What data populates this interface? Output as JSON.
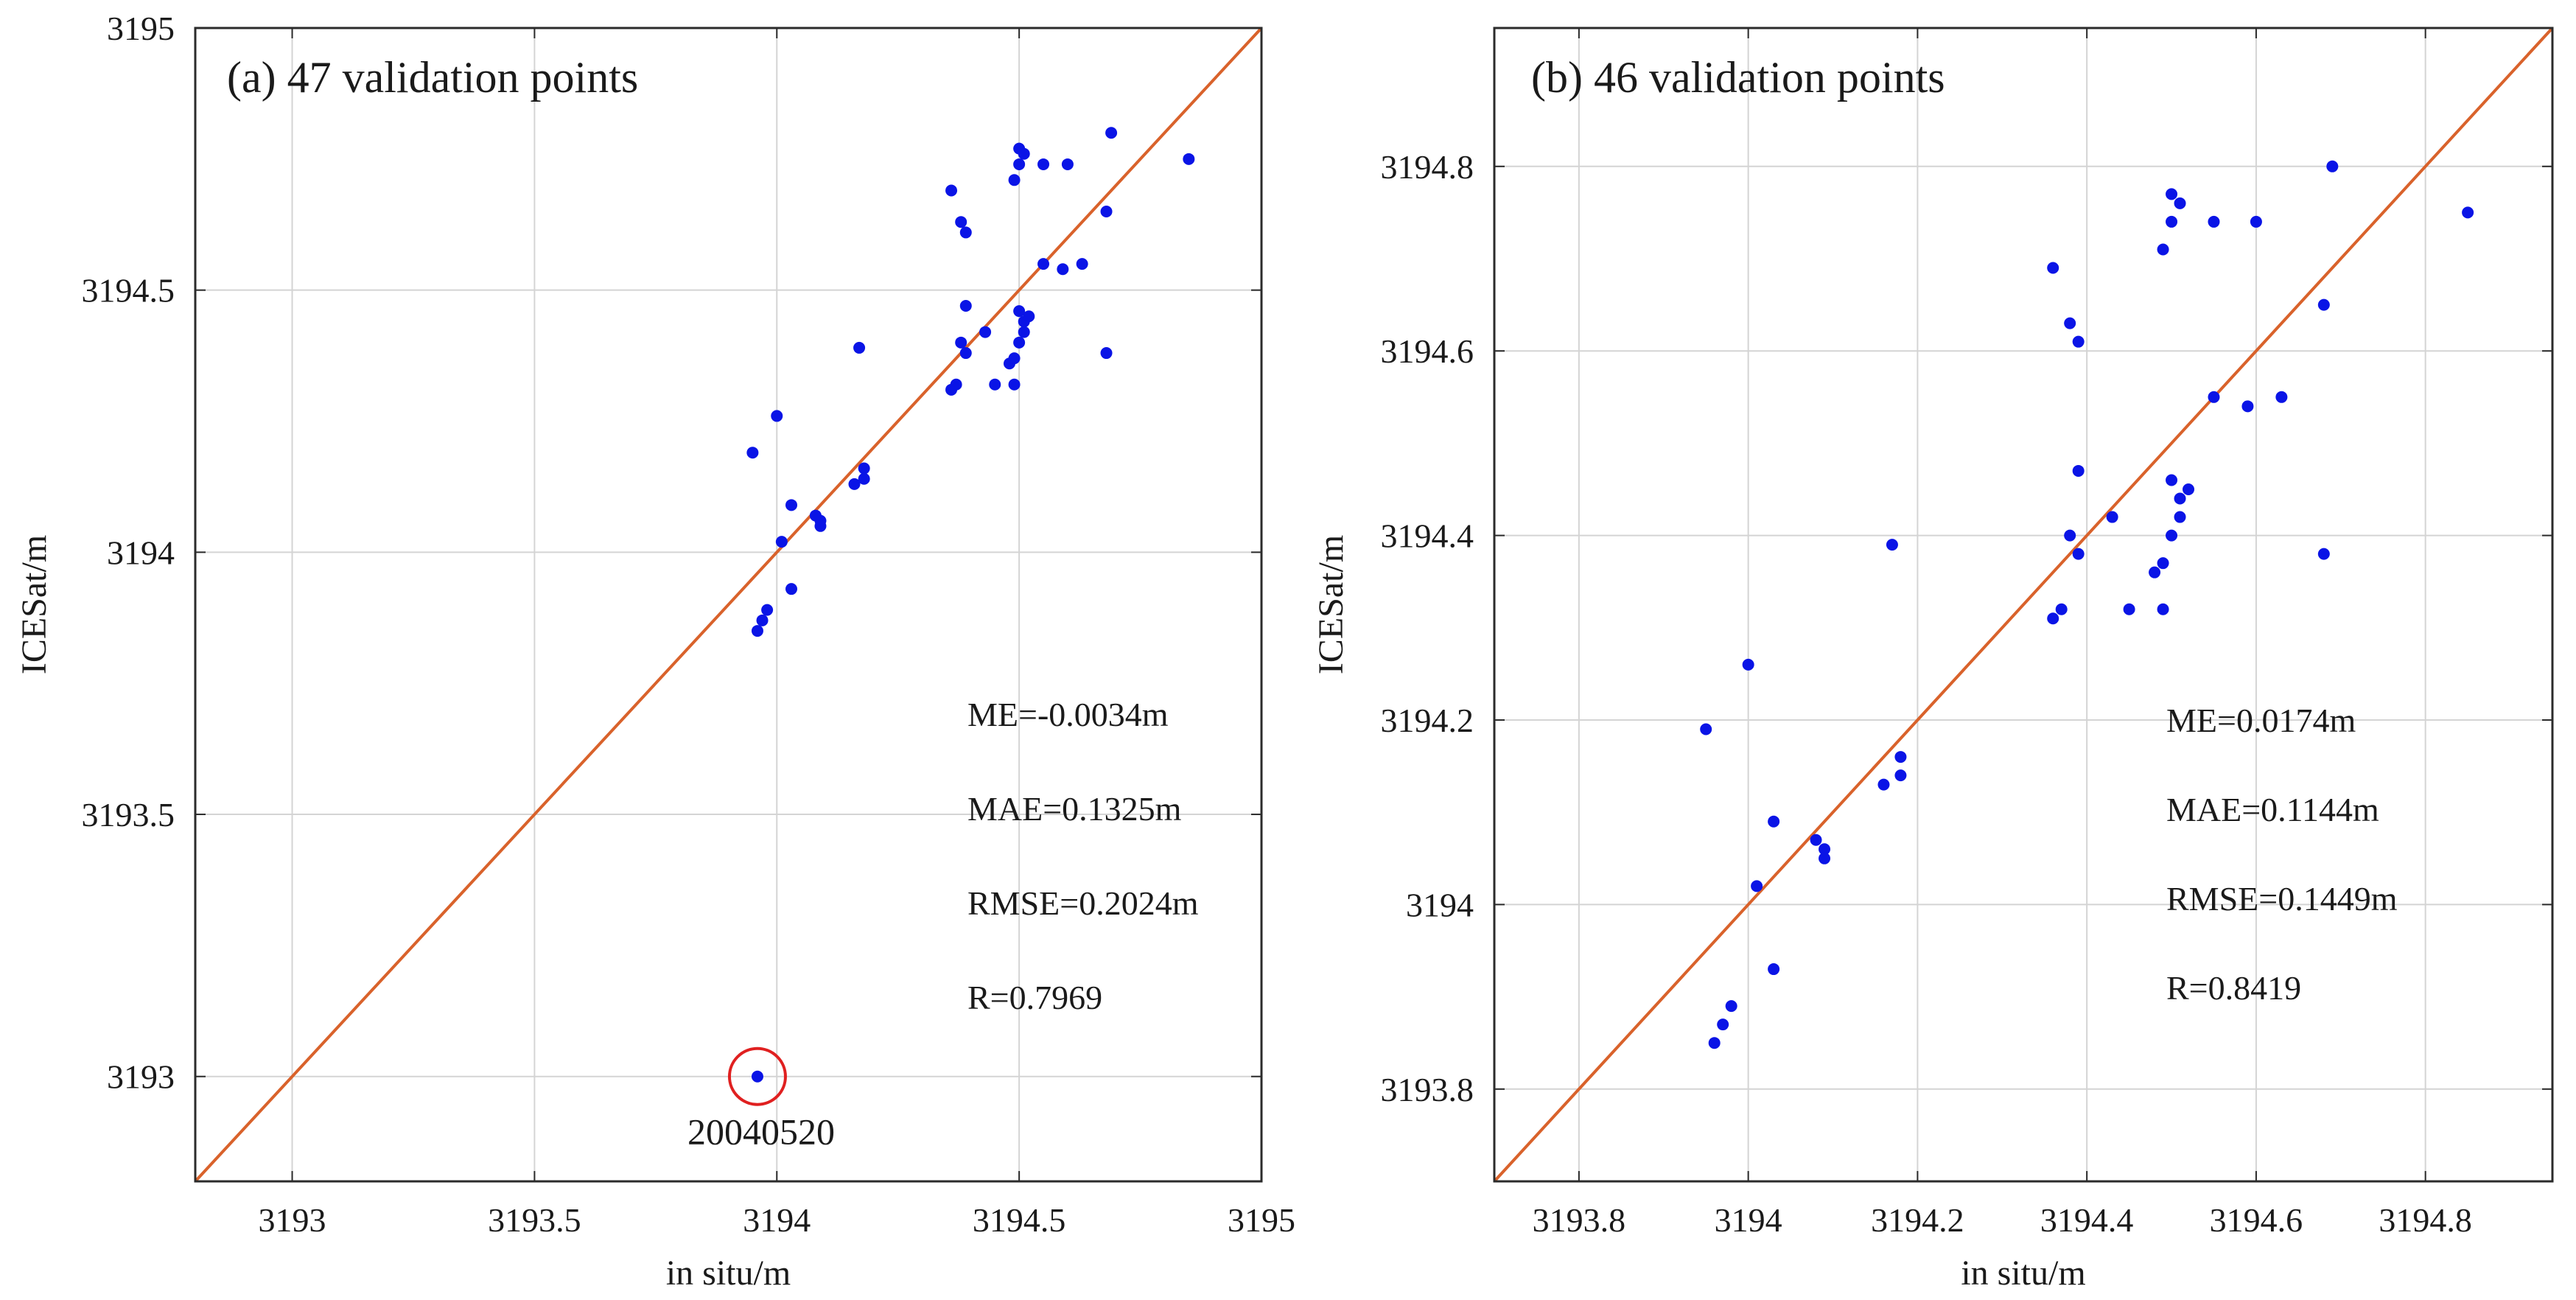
{
  "colors": {
    "point": "#0a14e6",
    "line": "#d9622b",
    "grid": "#d4d4d4",
    "frame": "#2b2b2b",
    "circle": "#e02020"
  },
  "chart_data": [
    {
      "type": "scatter",
      "title": "(a) 47 validation points",
      "xlabel": "in situ/m",
      "ylabel": "ICESat/m",
      "xlim": [
        3192.8,
        3195.0
      ],
      "ylim": [
        3192.8,
        3195.0
      ],
      "xticks": [
        3193,
        3193.5,
        3194,
        3194.5,
        3195
      ],
      "xtick_labels": [
        "3193",
        "3193.5",
        "3194",
        "3194.5",
        "3195"
      ],
      "yticks": [
        3193,
        3193.5,
        3194,
        3194.5,
        3195
      ],
      "ytick_labels": [
        "3193",
        "3193.5",
        "3194",
        "3194.5",
        "3195"
      ],
      "grid": true,
      "reference_line": "1:1",
      "stats": [
        "ME=-0.0034m",
        "MAE=0.1325m",
        "RMSE=0.2024m",
        "R=0.7969"
      ],
      "annotation": {
        "label": "20040520",
        "x": 3193.96,
        "y": 3193.0
      },
      "points": [
        [
          3193.95,
          3194.19
        ],
        [
          3193.96,
          3193.85
        ],
        [
          3193.97,
          3193.87
        ],
        [
          3193.98,
          3193.89
        ],
        [
          3194.0,
          3194.26
        ],
        [
          3194.01,
          3194.02
        ],
        [
          3194.03,
          3194.09
        ],
        [
          3194.03,
          3193.93
        ],
        [
          3194.08,
          3194.07
        ],
        [
          3194.09,
          3194.06
        ],
        [
          3194.09,
          3194.05
        ],
        [
          3194.16,
          3194.13
        ],
        [
          3194.17,
          3194.39
        ],
        [
          3194.18,
          3194.16
        ],
        [
          3194.18,
          3194.14
        ],
        [
          3194.36,
          3194.69
        ],
        [
          3194.36,
          3194.31
        ],
        [
          3194.37,
          3194.32
        ],
        [
          3194.38,
          3194.63
        ],
        [
          3194.39,
          3194.61
        ],
        [
          3194.38,
          3194.4
        ],
        [
          3194.39,
          3194.47
        ],
        [
          3194.39,
          3194.38
        ],
        [
          3194.43,
          3194.42
        ],
        [
          3194.45,
          3194.32
        ],
        [
          3194.48,
          3194.36
        ],
        [
          3194.49,
          3194.37
        ],
        [
          3194.49,
          3194.71
        ],
        [
          3194.49,
          3194.32
        ],
        [
          3194.5,
          3194.74
        ],
        [
          3194.5,
          3194.77
        ],
        [
          3194.51,
          3194.76
        ],
        [
          3194.5,
          3194.46
        ],
        [
          3194.51,
          3194.44
        ],
        [
          3194.5,
          3194.4
        ],
        [
          3194.51,
          3194.42
        ],
        [
          3194.52,
          3194.45
        ],
        [
          3194.55,
          3194.55
        ],
        [
          3194.55,
          3194.74
        ],
        [
          3194.59,
          3194.54
        ],
        [
          3194.6,
          3194.74
        ],
        [
          3194.63,
          3194.55
        ],
        [
          3194.68,
          3194.65
        ],
        [
          3194.68,
          3194.38
        ],
        [
          3194.69,
          3194.8
        ],
        [
          3194.85,
          3194.75
        ],
        [
          3193.96,
          3193.0
        ]
      ]
    },
    {
      "type": "scatter",
      "title": "(b) 46 validation points",
      "xlabel": "in situ/m",
      "ylabel": "ICESat/m",
      "xlim": [
        3193.7,
        3194.95
      ],
      "ylim": [
        3193.7,
        3194.95
      ],
      "xticks": [
        3193.8,
        3194.0,
        3194.2,
        3194.4,
        3194.6,
        3194.8
      ],
      "xtick_labels": [
        "3193.8",
        "3194",
        "3194.2",
        "3194.4",
        "3194.6",
        "3194.8"
      ],
      "yticks": [
        3193.8,
        3194.0,
        3194.2,
        3194.4,
        3194.6,
        3194.8
      ],
      "ytick_labels": [
        "3193.8",
        "3194",
        "3194.2",
        "3194.4",
        "3194.6",
        "3194.8"
      ],
      "grid": true,
      "reference_line": "1:1",
      "stats": [
        "ME=0.0174m",
        "MAE=0.1144m",
        "RMSE=0.1449m",
        "R=0.8419"
      ],
      "points": [
        [
          3193.95,
          3194.19
        ],
        [
          3193.96,
          3193.85
        ],
        [
          3193.97,
          3193.87
        ],
        [
          3193.98,
          3193.89
        ],
        [
          3194.0,
          3194.26
        ],
        [
          3194.01,
          3194.02
        ],
        [
          3194.03,
          3194.09
        ],
        [
          3194.03,
          3193.93
        ],
        [
          3194.08,
          3194.07
        ],
        [
          3194.09,
          3194.06
        ],
        [
          3194.09,
          3194.05
        ],
        [
          3194.16,
          3194.13
        ],
        [
          3194.17,
          3194.39
        ],
        [
          3194.18,
          3194.16
        ],
        [
          3194.18,
          3194.14
        ],
        [
          3194.36,
          3194.69
        ],
        [
          3194.36,
          3194.31
        ],
        [
          3194.37,
          3194.32
        ],
        [
          3194.38,
          3194.63
        ],
        [
          3194.39,
          3194.61
        ],
        [
          3194.38,
          3194.4
        ],
        [
          3194.39,
          3194.47
        ],
        [
          3194.39,
          3194.38
        ],
        [
          3194.43,
          3194.42
        ],
        [
          3194.45,
          3194.32
        ],
        [
          3194.48,
          3194.36
        ],
        [
          3194.49,
          3194.37
        ],
        [
          3194.49,
          3194.71
        ],
        [
          3194.49,
          3194.32
        ],
        [
          3194.5,
          3194.74
        ],
        [
          3194.5,
          3194.77
        ],
        [
          3194.51,
          3194.76
        ],
        [
          3194.5,
          3194.46
        ],
        [
          3194.51,
          3194.44
        ],
        [
          3194.5,
          3194.4
        ],
        [
          3194.51,
          3194.42
        ],
        [
          3194.52,
          3194.45
        ],
        [
          3194.55,
          3194.55
        ],
        [
          3194.55,
          3194.74
        ],
        [
          3194.59,
          3194.54
        ],
        [
          3194.6,
          3194.74
        ],
        [
          3194.63,
          3194.55
        ],
        [
          3194.68,
          3194.65
        ],
        [
          3194.68,
          3194.38
        ],
        [
          3194.69,
          3194.8
        ],
        [
          3194.85,
          3194.75
        ]
      ]
    }
  ]
}
